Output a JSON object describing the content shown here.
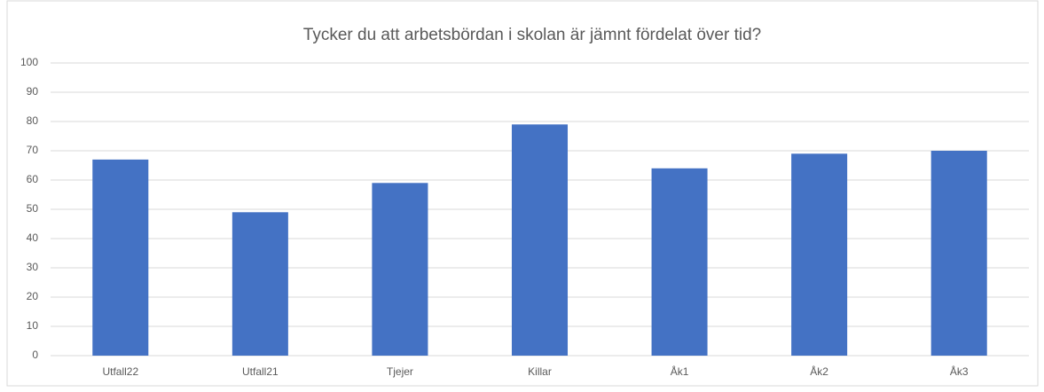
{
  "chart_data": {
    "type": "bar",
    "title": "Tycker du att arbetsbördan i skolan är jämnt fördelat över tid?",
    "categories": [
      "Utfall22",
      "Utfall21",
      "Tjejer",
      "Killar",
      "Åk1",
      "Åk2",
      "Åk3"
    ],
    "values": [
      67,
      49,
      59,
      79,
      64,
      69,
      70
    ],
    "color": "#4472c4",
    "ylim": [
      0,
      100
    ],
    "yticks": [
      0,
      10,
      20,
      30,
      40,
      50,
      60,
      70,
      80,
      90,
      100
    ],
    "grid": true
  }
}
